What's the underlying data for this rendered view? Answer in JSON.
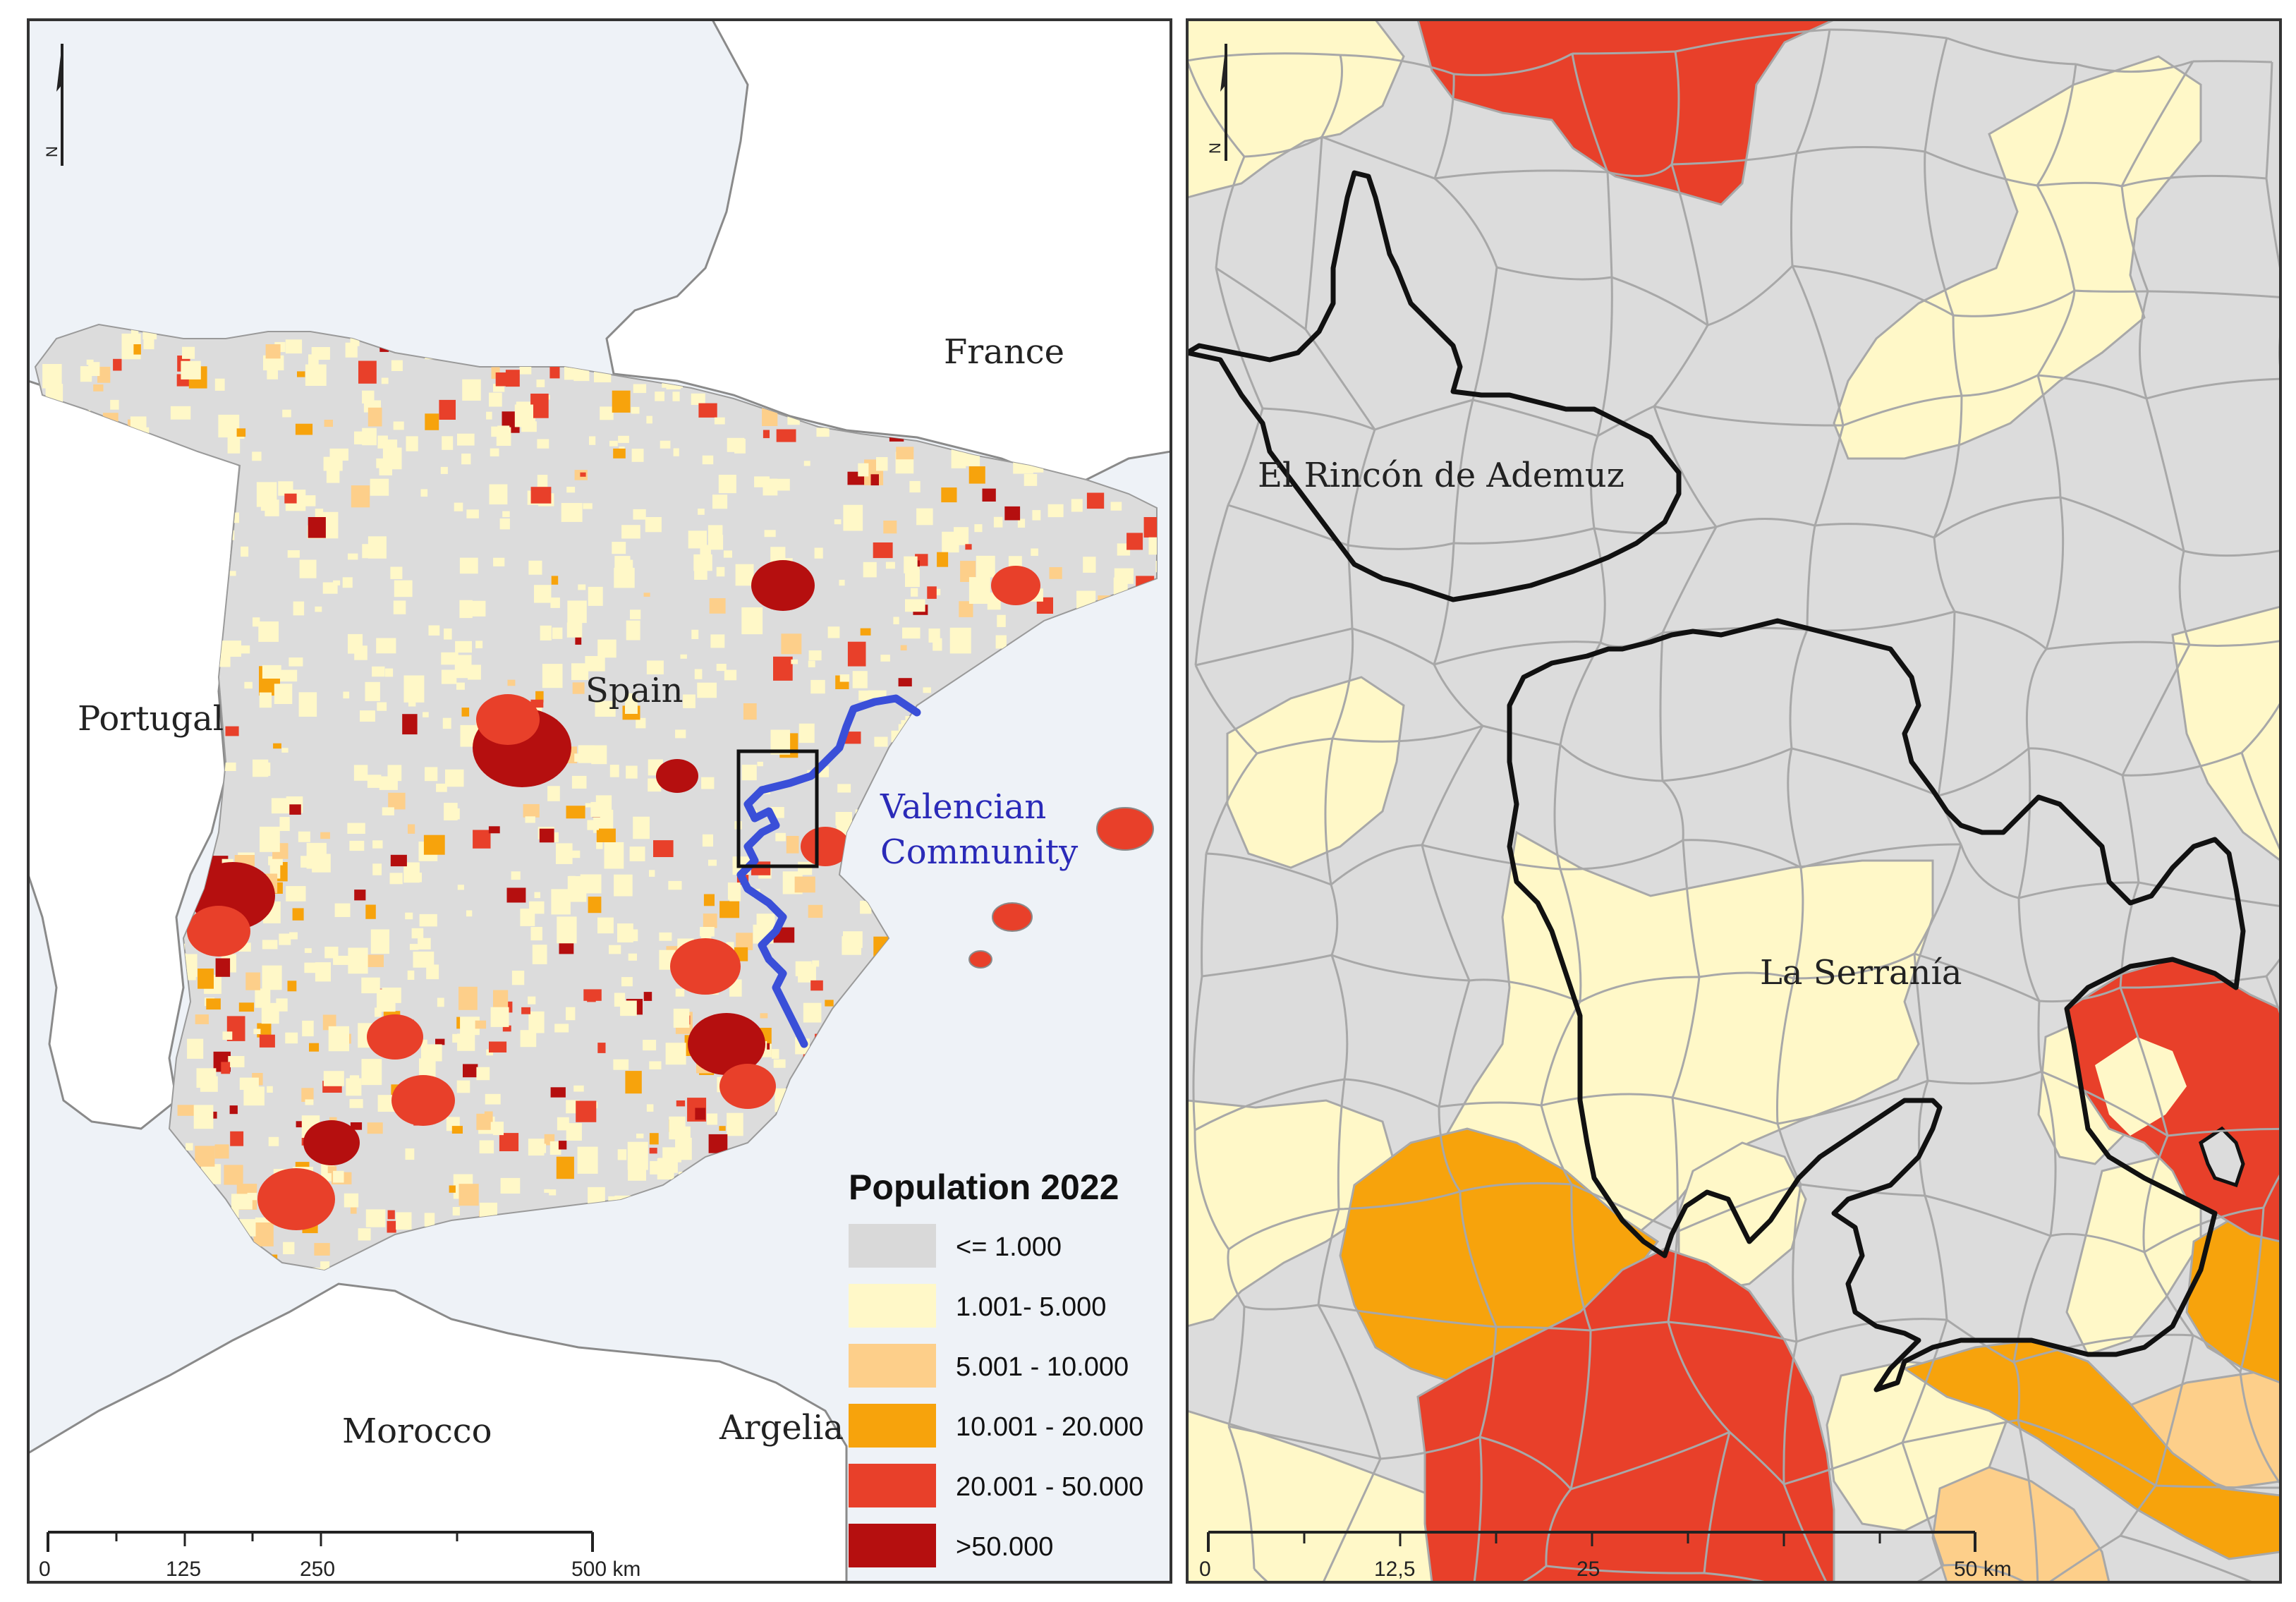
{
  "left_map": {
    "labels": {
      "france": "France",
      "spain": "Spain",
      "portugal": "Portugal",
      "morocco": "Morocco",
      "argelia": "Argelia",
      "valencian_1": "Valencian",
      "valencian_2": "Community"
    },
    "north_letter": "N",
    "scale_bar": [
      "0",
      "125",
      "250",
      "500 km"
    ],
    "legend": {
      "title": "Population 2022",
      "classes": [
        {
          "label": "<= 1.000",
          "color": "#d9d9d9"
        },
        {
          "label": "1.001- 5.000",
          "color": "#fff8c8"
        },
        {
          "label": "5.001 - 10.000",
          "color": "#fdcf8a"
        },
        {
          "label": "10.001 - 20.000",
          "color": "#f7a30c"
        },
        {
          "label": "20.001 - 50.000",
          "color": "#e8402a"
        },
        {
          "label": ">50.000",
          "color": "#b50f0f"
        }
      ]
    },
    "colors": {
      "sea": "#eef2f7",
      "foreign_land": "#ffffff",
      "valencia_boundary": "#3a4fd8",
      "valencian_label": "#2a2ab8"
    }
  },
  "right_map": {
    "labels": {
      "rincon": "El Rincón de Ademuz",
      "serrania": "La Serranía"
    },
    "north_letter": "N",
    "scale_bar": [
      "0",
      "12,5",
      "25",
      "50 km"
    ]
  }
}
